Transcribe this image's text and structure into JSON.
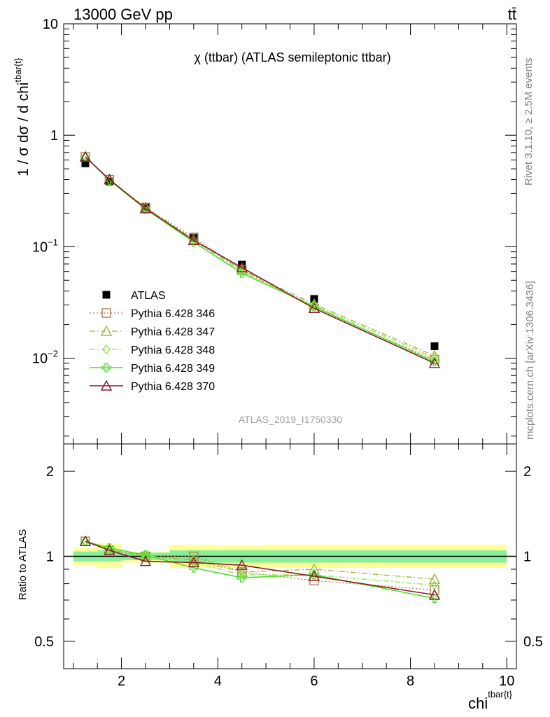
{
  "header": {
    "energy_label": "13000 GeV pp",
    "process_label": "tt̄"
  },
  "side": {
    "rivet_label": "Rivet 3.1.10, ≥ 2.5M events",
    "mcplots_label": "mcplots.cern.ch [arXiv:1306.3436]"
  },
  "chart_data": [
    {
      "type": "line",
      "panel": "main",
      "title": "χ (ttbar) (ATLAS semileptonic ttbar)",
      "ylabel": "1 / σ dσ / d chi",
      "ylabel_sup": "tbar{t}",
      "yscale": "log",
      "ylim": [
        0.0017,
        10
      ],
      "xlim": [
        0.8,
        10.2
      ],
      "y_ticks": [
        {
          "value": 10,
          "label": "10"
        },
        {
          "value": 1,
          "label": "1"
        },
        {
          "value": 0.1,
          "label": "10",
          "exp": "−1"
        },
        {
          "value": 0.01,
          "label": "10",
          "exp": "−2"
        }
      ],
      "analysis_tag": "ATLAS_2019_I1750330",
      "x": [
        1.25,
        1.75,
        2.5,
        3.5,
        4.5,
        6.0,
        8.5
      ],
      "bin_edges": [
        1,
        1.5,
        2,
        3,
        4,
        5,
        7,
        10
      ],
      "data": {
        "name": "ATLAS",
        "color": "#000000",
        "values": [
          0.56,
          0.385,
          0.225,
          0.12,
          0.069,
          0.034,
          0.0128
        ]
      },
      "series": [
        {
          "name": "Pythia 6.428 346",
          "color": "#b07d4a",
          "dash": "2,3",
          "marker": "square",
          "values": [
            0.64,
            0.4,
            0.225,
            0.121,
            0.062,
            0.028,
            0.0097
          ]
        },
        {
          "name": "Pythia 6.428 347",
          "color": "#9db53b",
          "dash": "8,3,2,3",
          "marker": "triangle",
          "values": [
            0.64,
            0.4,
            0.225,
            0.116,
            0.062,
            0.0305,
            0.0105
          ]
        },
        {
          "name": "Pythia 6.428 348",
          "color": "#9ee04d",
          "dash": "8,3,2,3",
          "marker": "diamond",
          "values": [
            0.64,
            0.4,
            0.225,
            0.114,
            0.06,
            0.0295,
            0.0101
          ]
        },
        {
          "name": "Pythia 6.428 349",
          "color": "#4ce02a",
          "dash": "",
          "marker": "cross",
          "values": [
            0.64,
            0.395,
            0.218,
            0.11,
            0.058,
            0.029,
            0.0093
          ]
        },
        {
          "name": "Pythia 6.428 370",
          "color": "#8b1a2b",
          "dash": "",
          "marker": "triangle",
          "values": [
            0.64,
            0.4,
            0.22,
            0.114,
            0.065,
            0.028,
            0.009
          ]
        }
      ]
    },
    {
      "type": "line",
      "panel": "ratio",
      "ylabel": "Ratio to ATLAS",
      "yscale": "log",
      "ylim": [
        0.4,
        2.5
      ],
      "y_ticks": [
        {
          "value": 0.5,
          "label": "0.5"
        },
        {
          "value": 1,
          "label": "1"
        },
        {
          "value": 2,
          "label": "2"
        }
      ],
      "xlabel": "chi",
      "xlabel_sup": "tbar{t}",
      "x_ticks": [
        {
          "value": 2,
          "label": "2"
        },
        {
          "value": 4,
          "label": "4"
        },
        {
          "value": 6,
          "label": "6"
        },
        {
          "value": 8,
          "label": "8"
        },
        {
          "value": 10,
          "label": "10"
        }
      ],
      "bands": {
        "bin_edges": [
          1,
          1.5,
          2,
          3,
          4,
          5,
          7,
          10
        ],
        "stat_low": [
          0.96,
          0.96,
          0.97,
          0.95,
          0.95,
          0.95,
          0.95
        ],
        "stat_high": [
          1.04,
          1.05,
          1.03,
          1.05,
          1.05,
          1.05,
          1.05
        ],
        "tot_low": [
          0.93,
          0.91,
          0.95,
          0.91,
          0.91,
          0.91,
          0.91
        ],
        "tot_high": [
          1.07,
          1.11,
          1.04,
          1.1,
          1.09,
          1.1,
          1.1
        ]
      },
      "x": [
        1.25,
        1.75,
        2.5,
        3.5,
        4.5,
        6.0,
        8.5
      ],
      "series": [
        {
          "name": "Pythia 6.428 346",
          "values": [
            1.13,
            1.05,
            1.0,
            1.0,
            0.88,
            0.82,
            0.76
          ]
        },
        {
          "name": "Pythia 6.428 347",
          "values": [
            1.13,
            1.06,
            1.0,
            0.97,
            0.88,
            0.9,
            0.83
          ]
        },
        {
          "name": "Pythia 6.428 348",
          "values": [
            1.13,
            1.06,
            1.01,
            0.95,
            0.86,
            0.86,
            0.79
          ]
        },
        {
          "name": "Pythia 6.428 349",
          "values": [
            1.13,
            1.07,
            1.01,
            0.91,
            0.84,
            0.86,
            0.71
          ]
        },
        {
          "name": "Pythia 6.428 370",
          "values": [
            1.13,
            1.05,
            0.96,
            0.95,
            0.93,
            0.85,
            0.73
          ]
        }
      ]
    }
  ]
}
